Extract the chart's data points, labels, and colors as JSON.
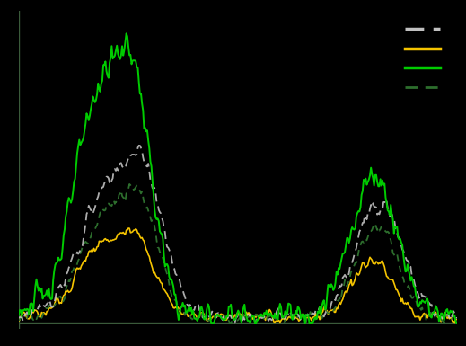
{
  "background_color": "#000000",
  "plot_bg_color": "#000000",
  "line_colors": {
    "gray_dash": "#c0c0c0",
    "yellow": "#f5c400",
    "bright_green": "#00cc00",
    "dark_green": "#2d6e2d"
  },
  "n_points": 420,
  "axis_line_color": "#3a5a3a"
}
